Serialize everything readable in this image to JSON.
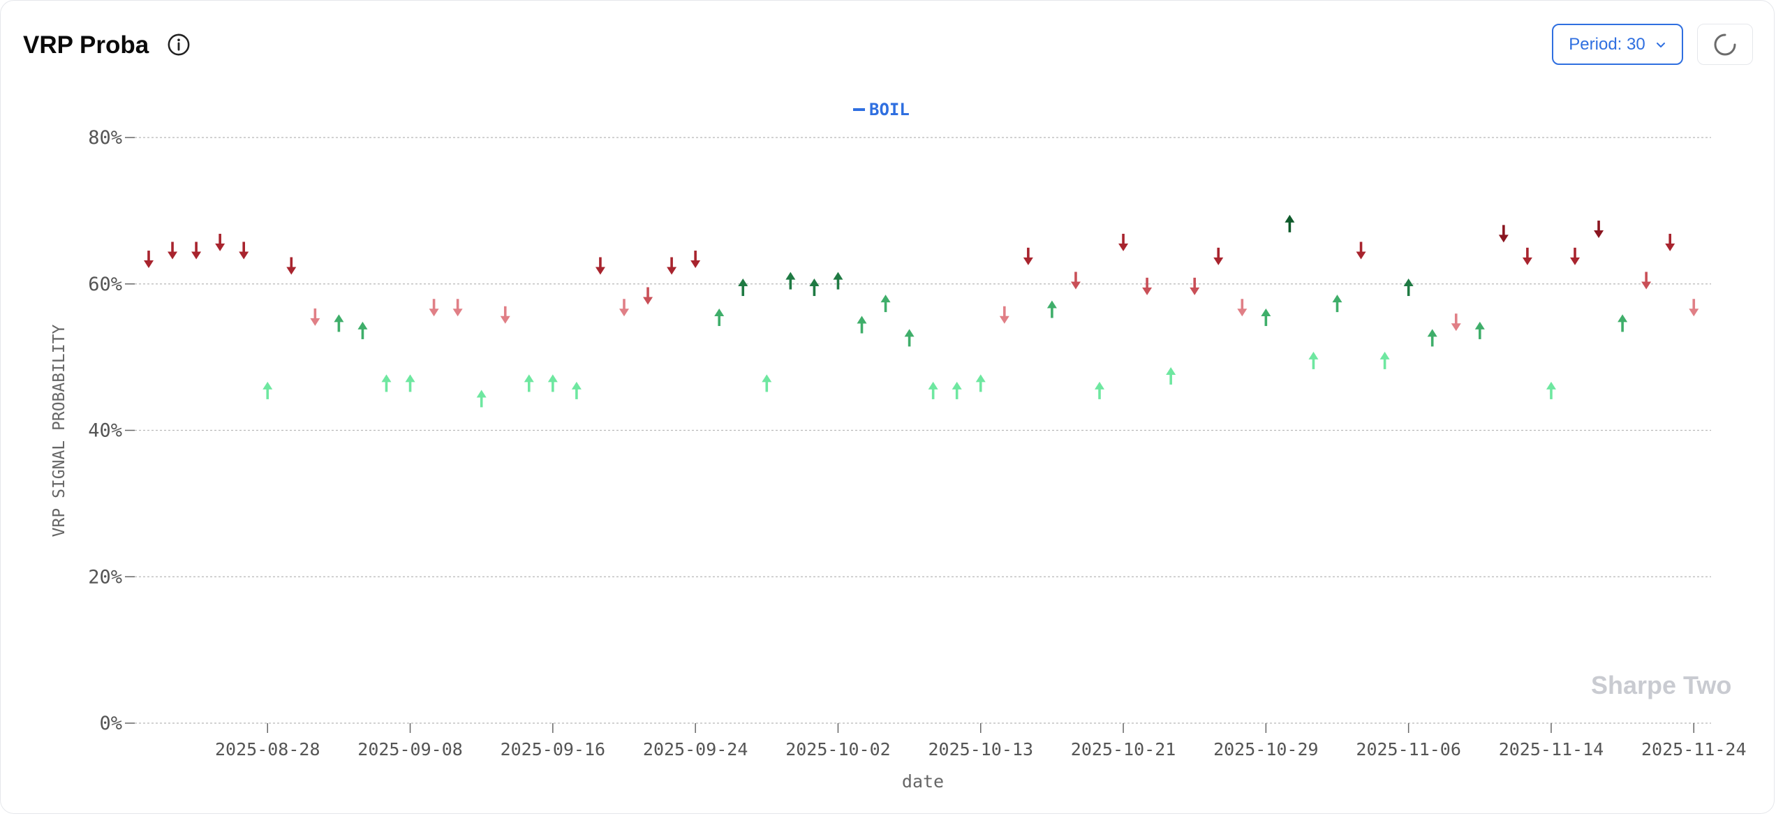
{
  "header": {
    "title": "VRP Proba",
    "period_label": "Period: 30"
  },
  "icons": {
    "info": "info-icon",
    "chevron": "chevron-down-icon",
    "refresh": "loading-spinner-icon"
  },
  "watermark": "Sharpe Two",
  "colors": {
    "up_light": "#6ee7a0",
    "up_mid": "#3fae6a",
    "up_dark": "#1f7a43",
    "up_darkest": "#0f5a2b",
    "down_light": "#e07f86",
    "down_mid": "#c94f57",
    "down_dark": "#a8242e",
    "down_darkest": "#8a1620",
    "legend": "#2f6fe0"
  },
  "chart_data": {
    "type": "scatter",
    "title": "",
    "xlabel": "date",
    "ylabel": "VRP SIGNAL PROBABILITY",
    "ylim": [
      0,
      80
    ],
    "y_ticks": [
      "0%",
      "20%",
      "40%",
      "60%",
      "80%"
    ],
    "x_ticks": [
      "2025-08-28",
      "2025-09-08",
      "2025-09-16",
      "2025-09-24",
      "2025-10-02",
      "2025-10-13",
      "2025-10-21",
      "2025-10-29",
      "2025-11-06",
      "2025-11-14",
      "2025-11-24"
    ],
    "x_tick_index": [
      5,
      11,
      17,
      23,
      29,
      35,
      41,
      47,
      53,
      59,
      65
    ],
    "grid": true,
    "legend_position": "top-center",
    "series": [
      {
        "name": "BOIL",
        "points": [
          {
            "i": 0,
            "v": 63.5,
            "dir": "down"
          },
          {
            "i": 1,
            "v": 64.7,
            "dir": "down"
          },
          {
            "i": 2,
            "v": 64.7,
            "dir": "down"
          },
          {
            "i": 3,
            "v": 65.8,
            "dir": "down"
          },
          {
            "i": 4,
            "v": 64.7,
            "dir": "down"
          },
          {
            "i": 5,
            "v": 45.3,
            "dir": "up"
          },
          {
            "i": 6,
            "v": 62.6,
            "dir": "down"
          },
          {
            "i": 7,
            "v": 55.6,
            "dir": "down"
          },
          {
            "i": 8,
            "v": 54.5,
            "dir": "up"
          },
          {
            "i": 9,
            "v": 53.5,
            "dir": "up"
          },
          {
            "i": 10,
            "v": 46.3,
            "dir": "up"
          },
          {
            "i": 11,
            "v": 46.3,
            "dir": "up"
          },
          {
            "i": 12,
            "v": 56.9,
            "dir": "down"
          },
          {
            "i": 13,
            "v": 56.9,
            "dir": "down"
          },
          {
            "i": 14,
            "v": 44.2,
            "dir": "up"
          },
          {
            "i": 15,
            "v": 55.9,
            "dir": "down"
          },
          {
            "i": 16,
            "v": 46.3,
            "dir": "up"
          },
          {
            "i": 17,
            "v": 46.3,
            "dir": "up"
          },
          {
            "i": 18,
            "v": 45.3,
            "dir": "up"
          },
          {
            "i": 19,
            "v": 62.6,
            "dir": "down"
          },
          {
            "i": 20,
            "v": 56.9,
            "dir": "down"
          },
          {
            "i": 21,
            "v": 58.5,
            "dir": "down"
          },
          {
            "i": 22,
            "v": 62.6,
            "dir": "down"
          },
          {
            "i": 23,
            "v": 63.5,
            "dir": "down"
          },
          {
            "i": 24,
            "v": 55.3,
            "dir": "up"
          },
          {
            "i": 25,
            "v": 59.4,
            "dir": "up"
          },
          {
            "i": 26,
            "v": 46.3,
            "dir": "up"
          },
          {
            "i": 27,
            "v": 60.3,
            "dir": "up"
          },
          {
            "i": 28,
            "v": 59.4,
            "dir": "up"
          },
          {
            "i": 29,
            "v": 60.3,
            "dir": "up"
          },
          {
            "i": 30,
            "v": 54.3,
            "dir": "up"
          },
          {
            "i": 31,
            "v": 57.2,
            "dir": "up"
          },
          {
            "i": 32,
            "v": 52.5,
            "dir": "up"
          },
          {
            "i": 33,
            "v": 45.3,
            "dir": "up"
          },
          {
            "i": 34,
            "v": 45.3,
            "dir": "up"
          },
          {
            "i": 35,
            "v": 46.3,
            "dir": "up"
          },
          {
            "i": 36,
            "v": 55.9,
            "dir": "down"
          },
          {
            "i": 37,
            "v": 63.9,
            "dir": "down"
          },
          {
            "i": 38,
            "v": 56.4,
            "dir": "up"
          },
          {
            "i": 39,
            "v": 60.6,
            "dir": "down"
          },
          {
            "i": 40,
            "v": 45.3,
            "dir": "up"
          },
          {
            "i": 41,
            "v": 65.8,
            "dir": "down"
          },
          {
            "i": 42,
            "v": 59.8,
            "dir": "down"
          },
          {
            "i": 43,
            "v": 47.3,
            "dir": "up"
          },
          {
            "i": 44,
            "v": 59.8,
            "dir": "down"
          },
          {
            "i": 45,
            "v": 63.9,
            "dir": "down"
          },
          {
            "i": 46,
            "v": 56.9,
            "dir": "down"
          },
          {
            "i": 47,
            "v": 55.3,
            "dir": "up"
          },
          {
            "i": 48,
            "v": 68.1,
            "dir": "up"
          },
          {
            "i": 49,
            "v": 49.4,
            "dir": "up"
          },
          {
            "i": 50,
            "v": 57.2,
            "dir": "up"
          },
          {
            "i": 51,
            "v": 64.7,
            "dir": "down"
          },
          {
            "i": 52,
            "v": 49.4,
            "dir": "up"
          },
          {
            "i": 53,
            "v": 59.4,
            "dir": "up"
          },
          {
            "i": 54,
            "v": 52.5,
            "dir": "up"
          },
          {
            "i": 55,
            "v": 54.9,
            "dir": "down"
          },
          {
            "i": 56,
            "v": 53.5,
            "dir": "up"
          },
          {
            "i": 57,
            "v": 67.0,
            "dir": "down"
          },
          {
            "i": 58,
            "v": 63.9,
            "dir": "down"
          },
          {
            "i": 59,
            "v": 45.3,
            "dir": "up"
          },
          {
            "i": 60,
            "v": 63.9,
            "dir": "down"
          },
          {
            "i": 61,
            "v": 67.6,
            "dir": "down"
          },
          {
            "i": 62,
            "v": 54.5,
            "dir": "up"
          },
          {
            "i": 63,
            "v": 60.6,
            "dir": "down"
          },
          {
            "i": 64,
            "v": 65.8,
            "dir": "down"
          },
          {
            "i": 65,
            "v": 56.9,
            "dir": "down"
          }
        ]
      }
    ]
  }
}
